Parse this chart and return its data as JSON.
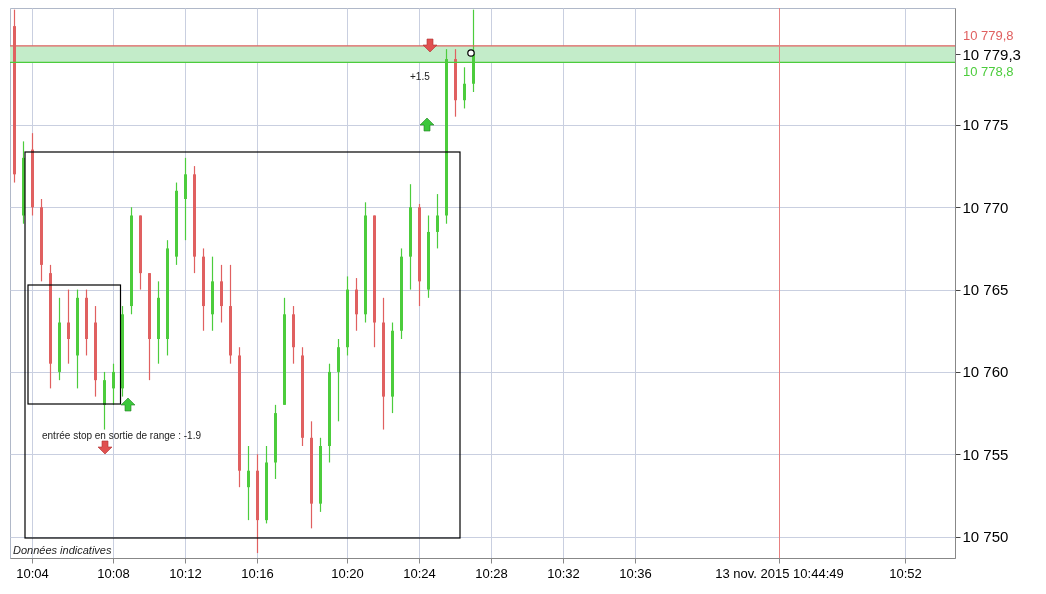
{
  "chart_data": {
    "type": "candlestick",
    "categories": [
      null,
      null,
      "10:04",
      null,
      null,
      null,
      null,
      null,
      null,
      null,
      null,
      "10:08",
      null,
      null,
      null,
      null,
      null,
      null,
      null,
      "10:12",
      null,
      null,
      null,
      null,
      null,
      null,
      null,
      "10:16",
      null,
      null,
      null,
      null,
      null,
      null,
      null,
      null,
      null,
      "10:20",
      null,
      null,
      null,
      null,
      null,
      null,
      null,
      "10:24",
      null,
      null,
      null,
      null,
      null,
      null,
      null,
      "10:28",
      null,
      null,
      null,
      null,
      null,
      null,
      null,
      "10:32",
      null,
      null,
      null,
      null,
      null,
      null,
      null,
      "10:36",
      null,
      null,
      null,
      null,
      null,
      null,
      null,
      null,
      null,
      null,
      null,
      null,
      null,
      null,
      null,
      "13 nov. 2015 10:44:49",
      null,
      null,
      null,
      null,
      null,
      null,
      null,
      null,
      null,
      null,
      null,
      null,
      null,
      "10:52",
      null,
      null,
      null,
      null,
      null
    ],
    "ohlc": [
      [
        10781,
        10782,
        10771.5,
        10772
      ],
      [
        10769.5,
        10774,
        10769,
        10773
      ],
      [
        10773.5,
        10774.5,
        10769.5,
        10770
      ],
      [
        10770,
        10770.5,
        10765.5,
        10766.5
      ],
      [
        10766,
        10766.5,
        10759,
        10760.5
      ],
      [
        10760,
        10764.5,
        10759.5,
        10763
      ],
      [
        10763,
        10765,
        10760.5,
        10762
      ],
      [
        10761,
        10765,
        10759,
        10764.5
      ],
      [
        10764.5,
        10765,
        10761,
        10762
      ],
      [
        10763,
        10764,
        10758.5,
        10759.5
      ],
      [
        10758,
        10760,
        10756.5,
        10759.5
      ],
      [
        10759,
        10760.5,
        10758,
        10760
      ],
      [
        10759,
        10764,
        10758.5,
        10763.5
      ],
      [
        10764,
        10770,
        10763.5,
        10769.5
      ],
      [
        10769.5,
        10769.5,
        10765,
        10766
      ],
      [
        10766,
        10766,
        10759.5,
        10762
      ],
      [
        10762,
        10765.5,
        10760.5,
        10764.5
      ],
      [
        10762,
        10768,
        10761,
        10767.5
      ],
      [
        10767,
        10771.5,
        10766.5,
        10771
      ],
      [
        10770.5,
        10773,
        10768,
        10772
      ],
      [
        10772,
        10772.5,
        10766,
        10767
      ],
      [
        10767,
        10767.5,
        10762.5,
        10764
      ],
      [
        10763.5,
        10767,
        10762.5,
        10765.5
      ],
      [
        10765.5,
        10766.5,
        10763,
        10764
      ],
      [
        10764,
        10766.5,
        10760.5,
        10761
      ],
      [
        10761,
        10761.5,
        10753,
        10754
      ],
      [
        10753,
        10755.5,
        10751,
        10754
      ],
      [
        10754,
        10755,
        10749,
        10751
      ],
      [
        10751,
        10755.5,
        10750.8,
        10754.5
      ],
      [
        10754.5,
        10758,
        10753.5,
        10757.5
      ],
      [
        10758,
        10764.5,
        10758,
        10763.5
      ],
      [
        10763.5,
        10764,
        10760.5,
        10761.5
      ],
      [
        10761,
        10761.5,
        10755.5,
        10756
      ],
      [
        10756,
        10757,
        10750.5,
        10752
      ],
      [
        10752,
        10756,
        10751.5,
        10755.5
      ],
      [
        10755.5,
        10760.5,
        10754.5,
        10760
      ],
      [
        10760,
        10762,
        10757,
        10761.5
      ],
      [
        10761.5,
        10765.8,
        10761,
        10765
      ],
      [
        10765,
        10765.7,
        10762.5,
        10763.5
      ],
      [
        10763.5,
        10770.3,
        10763,
        10769.5
      ],
      [
        10769.5,
        10769.5,
        10761.5,
        10763
      ],
      [
        10763,
        10764.5,
        10756.5,
        10758.5
      ],
      [
        10758.5,
        10763,
        10757.5,
        10762.5
      ],
      [
        10762.5,
        10767.5,
        10762,
        10767
      ],
      [
        10767,
        10771.4,
        10765,
        10770
      ],
      [
        10770,
        10770.2,
        10764,
        10765.5
      ],
      [
        10765,
        10769.5,
        10764.5,
        10768.5
      ],
      [
        10768.5,
        10770.8,
        10767.5,
        10769.5
      ],
      [
        10769.5,
        10779.6,
        10769,
        10779
      ],
      [
        10779,
        10779.6,
        10775.5,
        10776.5
      ],
      [
        10776.5,
        10778.5,
        10776,
        10777.5
      ],
      [
        10777.5,
        10782,
        10777,
        10779.3
      ],
      null,
      null,
      null,
      null,
      null,
      null,
      null,
      null,
      null,
      null,
      null,
      null,
      null,
      null,
      null,
      null,
      null,
      null,
      null,
      null,
      null,
      null,
      null,
      null,
      null,
      null,
      null,
      null,
      null,
      null,
      null,
      null,
      null,
      null,
      null,
      null,
      null,
      null,
      null,
      null,
      null,
      null,
      null,
      null,
      null,
      null,
      null,
      null,
      null,
      null,
      null,
      null,
      null
    ],
    "colors": [
      "#e06060",
      "#4ccc3c",
      "#e06060",
      "#e06060",
      "#e06060",
      "#4ccc3c",
      "#e06060",
      "#4ccc3c",
      "#e06060",
      "#e06060",
      "#4ccc3c",
      "#4ccc3c",
      "#4ccc3c",
      "#4ccc3c",
      "#e06060",
      "#e06060",
      "#4ccc3c",
      "#4ccc3c",
      "#4ccc3c",
      "#4ccc3c",
      "#e06060",
      "#e06060",
      "#4ccc3c",
      "#e06060",
      "#e06060",
      "#e06060",
      "#4ccc3c",
      "#e06060",
      "#4ccc3c",
      "#4ccc3c",
      "#4ccc3c",
      "#e06060",
      "#e06060",
      "#e06060",
      "#4ccc3c",
      "#4ccc3c",
      "#4ccc3c",
      "#4ccc3c",
      "#e06060",
      "#4ccc3c",
      "#e06060",
      "#e06060",
      "#4ccc3c",
      "#4ccc3c",
      "#4ccc3c",
      "#e06060",
      "#4ccc3c",
      "#4ccc3c",
      "#4ccc3c",
      "#e06060",
      "#4ccc3c",
      "#4ccc3c",
      null,
      null,
      null,
      null,
      null,
      null,
      null,
      null,
      null,
      null,
      null,
      null,
      null,
      null,
      null,
      null,
      null,
      null,
      null,
      null,
      null,
      null,
      null,
      null,
      null,
      null,
      null,
      null,
      null,
      null,
      null,
      null,
      null,
      null,
      null,
      null,
      null,
      null,
      null,
      null,
      null,
      null,
      null,
      null,
      null,
      null,
      null,
      null,
      null,
      null,
      null,
      null,
      null
    ],
    "ylim": [
      10748.7,
      10782.1
    ],
    "yticks": [
      {
        "value": 10750,
        "label": "10 750"
      },
      {
        "value": 10755,
        "label": "10 755"
      },
      {
        "value": 10760,
        "label": "10 760"
      },
      {
        "value": 10765,
        "label": "10 765"
      },
      {
        "value": 10770,
        "label": "10 770"
      },
      {
        "value": 10775,
        "label": "10 775"
      },
      {
        "value": 10779.3,
        "label": "10 779,3"
      }
    ],
    "grid": true,
    "bands": [
      {
        "axis": "y",
        "from": 10778.8,
        "to": 10779.8,
        "color": "#c3ecc9"
      }
    ],
    "ref_lines": [
      {
        "axis": "y",
        "value": 10779.8,
        "label": "10 779,8",
        "color": "#e06060"
      },
      {
        "axis": "y",
        "value": 10778.8,
        "label": "10 778,8",
        "color": "#4ccc3c"
      },
      {
        "axis": "x",
        "value": "13 nov. 2015 10:44:49",
        "color": "#e88080"
      }
    ],
    "annotations": [
      "Données indicatives",
      "entrée stop en sortie de range : -1.9",
      "+1.5"
    ]
  }
}
